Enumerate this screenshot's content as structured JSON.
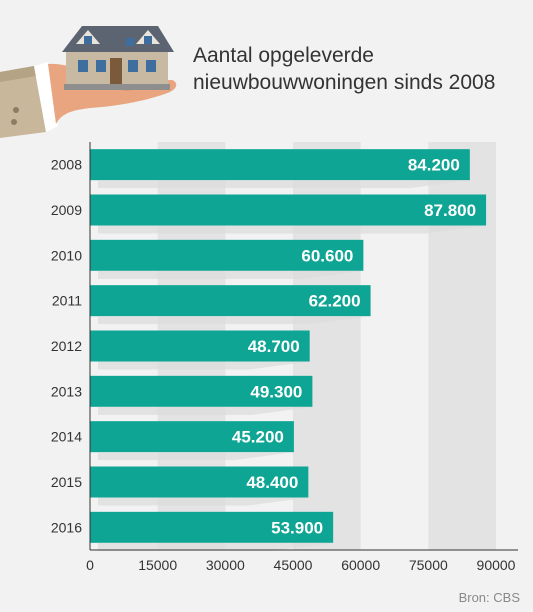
{
  "title": "Aantal opgeleverde\nnieuwbouwwoningen sinds 2008",
  "source": "Bron: CBS",
  "colors": {
    "bar": "#0ea594",
    "band": "#e3e3e3",
    "background": "#f2f2f2",
    "axis": "#333333",
    "bar_label": "#ffffff"
  },
  "icons": [
    "hand-holding-house-icon"
  ],
  "chart_data": {
    "type": "bar",
    "orientation": "horizontal",
    "categories": [
      "2008",
      "2009",
      "2010",
      "2011",
      "2012",
      "2013",
      "2014",
      "2015",
      "2016"
    ],
    "values": [
      84200,
      87800,
      60600,
      62200,
      48700,
      49300,
      45200,
      48400,
      53900
    ],
    "value_labels": [
      "84.200",
      "87.800",
      "60.600",
      "62.200",
      "48.700",
      "49.300",
      "45.200",
      "48.400",
      "53.900"
    ],
    "xticks": [
      0,
      15000,
      30000,
      45000,
      60000,
      75000,
      90000
    ],
    "xlim": [
      0,
      90000
    ],
    "grid": "alternating vertical bands",
    "legend": "none"
  }
}
